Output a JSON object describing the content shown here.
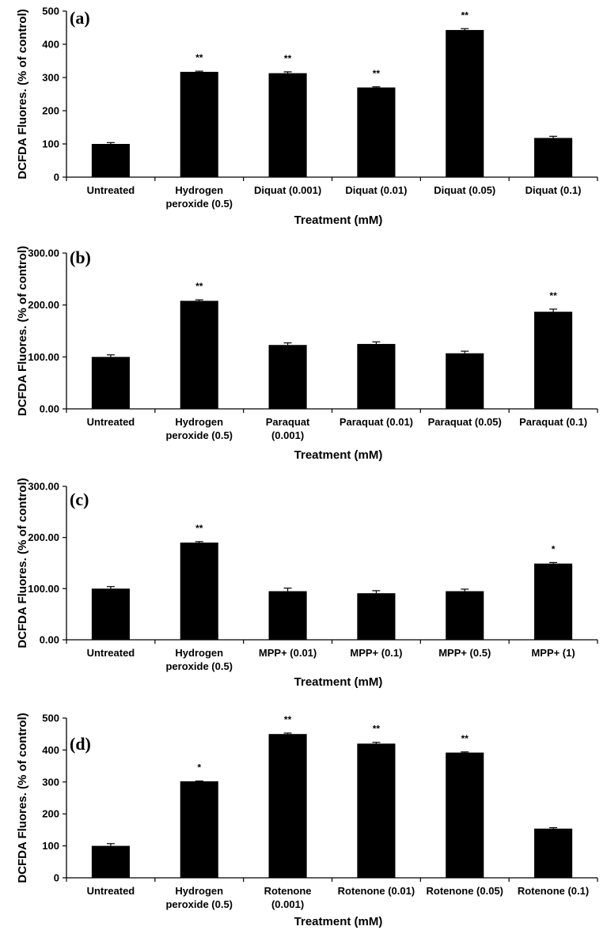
{
  "chart_data": [
    {
      "panel": "(a)",
      "type": "bar",
      "ylabel": "DCFDA Fluores. (% of control)",
      "xlabel": "Treatment (mM)",
      "ylim": [
        0,
        500
      ],
      "yticks": [
        "0",
        "100",
        "200",
        "300",
        "400",
        "500"
      ],
      "categories": [
        [
          "Untreated"
        ],
        [
          "Hydrogen",
          "peroxide (0.5)"
        ],
        [
          "Diquat (0.001)"
        ],
        [
          "Diquat (0.01)"
        ],
        [
          "Diquat (0.05)"
        ],
        [
          "Diquat (0.1)"
        ]
      ],
      "values": [
        100,
        317,
        313,
        270,
        443,
        118
      ],
      "errors": [
        4,
        2,
        4,
        2,
        4,
        5
      ],
      "significance": [
        "",
        "**",
        "**",
        "**",
        "**",
        ""
      ]
    },
    {
      "panel": "(b)",
      "type": "bar",
      "ylabel": "DCFDA Fluores. (% of control)",
      "xlabel": "Treatment (mM)",
      "ylim": [
        0,
        300
      ],
      "yticks": [
        "0.00",
        "100.00",
        "200.00",
        "300.00"
      ],
      "categories": [
        [
          "Untreated"
        ],
        [
          "Hydrogen",
          "peroxide (0.5)"
        ],
        [
          "Paraquat",
          "(0.001)"
        ],
        [
          "Paraquat (0.01)"
        ],
        [
          "Paraquat (0.05)"
        ],
        [
          "Paraquat (0.1)"
        ]
      ],
      "values": [
        100,
        208,
        123,
        125,
        107,
        187
      ],
      "errors": [
        4,
        2,
        4,
        4,
        4,
        5
      ],
      "significance": [
        "",
        "**",
        "",
        "",
        "",
        "**"
      ]
    },
    {
      "panel": "(c)",
      "type": "bar",
      "ylabel": "DCFDA Fluores. (% of control)",
      "xlabel": "Treatment (mM)",
      "ylim": [
        0,
        300
      ],
      "yticks": [
        "0.00",
        "100.00",
        "200.00",
        "300.00"
      ],
      "categories": [
        [
          "Untreated"
        ],
        [
          "Hydrogen",
          "peroxide (0.5)"
        ],
        [
          "MPP+ (0.01)"
        ],
        [
          "MPP+ (0.1)"
        ],
        [
          "MPP+ (0.5)"
        ],
        [
          "MPP+ (1)"
        ]
      ],
      "values": [
        100,
        190,
        95,
        91,
        95,
        149
      ],
      "errors": [
        4,
        2,
        6,
        5,
        4,
        2
      ],
      "significance": [
        "",
        "**",
        "",
        "",
        "",
        "*"
      ]
    },
    {
      "panel": "(d)",
      "type": "bar",
      "ylabel": "DCFDA Fluores. (% of control)",
      "xlabel": "Treatment (mM)",
      "ylim": [
        0,
        500
      ],
      "yticks": [
        "0",
        "100",
        "200",
        "300",
        "400",
        "500"
      ],
      "categories": [
        [
          "Untreated"
        ],
        [
          "Hydrogen",
          "peroxide (0.5)"
        ],
        [
          "Rotenone",
          "(0.001)"
        ],
        [
          "Rotenone (0.01)"
        ],
        [
          "Rotenone (0.05)"
        ],
        [
          "Rotenone (0.1)"
        ]
      ],
      "values": [
        100,
        302,
        450,
        420,
        392,
        154
      ],
      "errors": [
        7,
        1,
        3,
        4,
        2,
        3
      ],
      "significance": [
        "",
        "*",
        "**",
        "**",
        "**",
        ""
      ]
    }
  ]
}
